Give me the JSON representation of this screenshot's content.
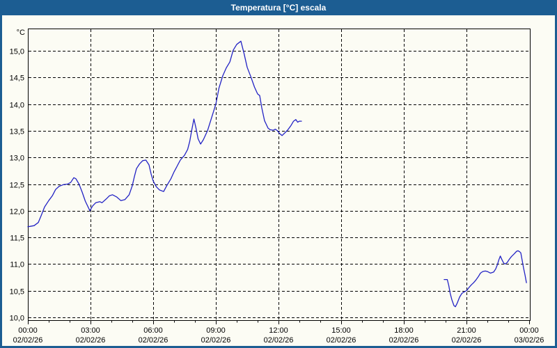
{
  "window": {
    "title": "Temperatura [°C] escala"
  },
  "colors": {
    "titlebar_bg": "#1c5d92",
    "titlebar_text": "#ffffff",
    "window_bg": "#fcfcf4",
    "window_border": "#1c5d92",
    "plot_frame": "#000000",
    "grid": "#000000",
    "label_text": "#000000",
    "line": "#2222c4"
  },
  "chart_data": {
    "type": "line",
    "title": "Temperatura [°C] escala",
    "ylabel": "°C",
    "unit_label": "°C",
    "grid": "dashed",
    "legend": "none",
    "ylim": [
      9.95,
      15.42
    ],
    "x_range_hours": [
      0,
      24
    ],
    "minor_tick_hours": 1,
    "yticks": [
      {
        "value": 15.0,
        "label": "15,0"
      },
      {
        "value": 14.5,
        "label": "14,5"
      },
      {
        "value": 14.0,
        "label": "14,0"
      },
      {
        "value": 13.5,
        "label": "13,5"
      },
      {
        "value": 13.0,
        "label": "13,0"
      },
      {
        "value": 12.5,
        "label": "12,5"
      },
      {
        "value": 12.0,
        "label": "12,0"
      },
      {
        "value": 11.5,
        "label": "11,5"
      },
      {
        "value": 11.0,
        "label": "11,0"
      },
      {
        "value": 10.5,
        "label": "10,5"
      },
      {
        "value": 10.0,
        "label": "10,0"
      }
    ],
    "xticks": [
      {
        "hour": 0,
        "time": "00:00",
        "date": "02/02/26"
      },
      {
        "hour": 3,
        "time": "03:00",
        "date": "02/02/26"
      },
      {
        "hour": 6,
        "time": "06:00",
        "date": "02/02/26"
      },
      {
        "hour": 9,
        "time": "09:00",
        "date": "02/02/26"
      },
      {
        "hour": 12,
        "time": "12:00",
        "date": "02/02/26"
      },
      {
        "hour": 15,
        "time": "15:00",
        "date": "02/02/26"
      },
      {
        "hour": 18,
        "time": "18:00",
        "date": "02/02/26"
      },
      {
        "hour": 21,
        "time": "21:00",
        "date": "02/02/26"
      },
      {
        "hour": 24,
        "time": "00:00",
        "date": "03/02/26"
      }
    ],
    "series": [
      {
        "name": "Temperatura",
        "color": "#2222c4",
        "segments": [
          [
            [
              0.0,
              11.7
            ],
            [
              0.3,
              11.72
            ],
            [
              0.5,
              11.78
            ],
            [
              0.65,
              11.92
            ],
            [
              0.8,
              12.07
            ],
            [
              1.0,
              12.19
            ],
            [
              1.17,
              12.28
            ],
            [
              1.33,
              12.4
            ],
            [
              1.5,
              12.46
            ],
            [
              1.7,
              12.49
            ],
            [
              1.9,
              12.5
            ],
            [
              2.05,
              12.53
            ],
            [
              2.2,
              12.62
            ],
            [
              2.3,
              12.6
            ],
            [
              2.45,
              12.5
            ],
            [
              2.6,
              12.35
            ],
            [
              2.75,
              12.18
            ],
            [
              2.97,
              12.0
            ],
            [
              3.1,
              12.09
            ],
            [
              3.25,
              12.15
            ],
            [
              3.45,
              12.17
            ],
            [
              3.55,
              12.15
            ],
            [
              3.75,
              12.22
            ],
            [
              3.9,
              12.28
            ],
            [
              4.05,
              12.3
            ],
            [
              4.25,
              12.26
            ],
            [
              4.45,
              12.19
            ],
            [
              4.65,
              12.21
            ],
            [
              4.85,
              12.3
            ],
            [
              5.0,
              12.47
            ],
            [
              5.1,
              12.64
            ],
            [
              5.2,
              12.79
            ],
            [
              5.35,
              12.88
            ],
            [
              5.5,
              12.94
            ],
            [
              5.65,
              12.95
            ],
            [
              5.8,
              12.86
            ],
            [
              5.9,
              12.69
            ],
            [
              6.0,
              12.56
            ],
            [
              6.15,
              12.45
            ],
            [
              6.3,
              12.39
            ],
            [
              6.5,
              12.36
            ],
            [
              6.65,
              12.47
            ],
            [
              6.85,
              12.6
            ],
            [
              7.0,
              12.73
            ],
            [
              7.15,
              12.84
            ],
            [
              7.3,
              12.95
            ],
            [
              7.5,
              13.04
            ],
            [
              7.65,
              13.15
            ],
            [
              7.75,
              13.3
            ],
            [
              7.85,
              13.52
            ],
            [
              7.95,
              13.72
            ],
            [
              8.05,
              13.55
            ],
            [
              8.15,
              13.35
            ],
            [
              8.27,
              13.25
            ],
            [
              8.4,
              13.33
            ],
            [
              8.6,
              13.5
            ],
            [
              8.8,
              13.75
            ],
            [
              9.0,
              14.0
            ],
            [
              9.15,
              14.3
            ],
            [
              9.33,
              14.53
            ],
            [
              9.5,
              14.68
            ],
            [
              9.67,
              14.79
            ],
            [
              9.83,
              15.01
            ],
            [
              10.0,
              15.12
            ],
            [
              10.2,
              15.18
            ],
            [
              10.35,
              14.95
            ],
            [
              10.5,
              14.69
            ],
            [
              10.67,
              14.52
            ],
            [
              10.85,
              14.32
            ],
            [
              11.0,
              14.19
            ],
            [
              11.1,
              14.16
            ],
            [
              11.2,
              13.93
            ],
            [
              11.33,
              13.69
            ],
            [
              11.5,
              13.55
            ],
            [
              11.6,
              13.52
            ],
            [
              11.75,
              13.51
            ],
            [
              11.85,
              13.53
            ],
            [
              11.95,
              13.5
            ],
            [
              12.05,
              13.45
            ],
            [
              12.17,
              13.41
            ],
            [
              12.3,
              13.46
            ],
            [
              12.45,
              13.52
            ],
            [
              12.6,
              13.6
            ],
            [
              12.72,
              13.68
            ],
            [
              12.83,
              13.71
            ],
            [
              12.92,
              13.66
            ],
            [
              13.0,
              13.68
            ],
            [
              13.1,
              13.68
            ]
          ],
          [
            [
              19.93,
              10.71
            ],
            [
              20.08,
              10.71
            ],
            [
              20.15,
              10.6
            ],
            [
              20.22,
              10.45
            ],
            [
              20.3,
              10.33
            ],
            [
              20.4,
              10.22
            ],
            [
              20.47,
              10.2
            ],
            [
              20.56,
              10.27
            ],
            [
              20.67,
              10.38
            ],
            [
              20.78,
              10.45
            ],
            [
              20.9,
              10.48
            ],
            [
              21.0,
              10.5
            ],
            [
              21.12,
              10.56
            ],
            [
              21.23,
              10.61
            ],
            [
              21.34,
              10.65
            ],
            [
              21.45,
              10.7
            ],
            [
              21.56,
              10.76
            ],
            [
              21.67,
              10.83
            ],
            [
              21.78,
              10.86
            ],
            [
              21.9,
              10.87
            ],
            [
              22.0,
              10.86
            ],
            [
              22.15,
              10.83
            ],
            [
              22.3,
              10.85
            ],
            [
              22.4,
              10.91
            ],
            [
              22.48,
              10.99
            ],
            [
              22.55,
              11.08
            ],
            [
              22.62,
              11.15
            ],
            [
              22.7,
              11.08
            ],
            [
              22.78,
              11.02
            ],
            [
              22.85,
              11.0
            ],
            [
              22.95,
              11.03
            ],
            [
              23.05,
              11.09
            ],
            [
              23.15,
              11.14
            ],
            [
              23.28,
              11.19
            ],
            [
              23.4,
              11.24
            ],
            [
              23.47,
              11.25
            ],
            [
              23.55,
              11.23
            ],
            [
              23.6,
              11.21
            ],
            [
              23.67,
              11.06
            ],
            [
              23.73,
              10.93
            ],
            [
              23.8,
              10.8
            ],
            [
              23.87,
              10.65
            ]
          ]
        ]
      }
    ]
  }
}
